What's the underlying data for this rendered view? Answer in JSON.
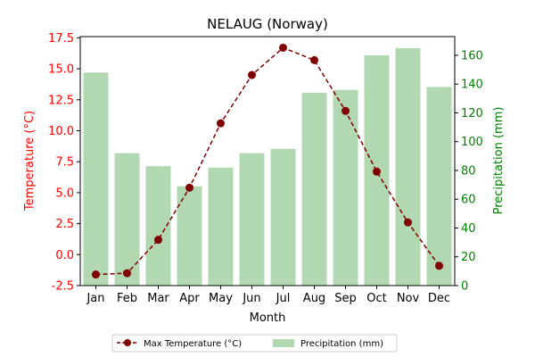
{
  "chart_data": {
    "type": "bar+line",
    "title": "NELAUG (Norway)",
    "xlabel": "Month",
    "categories": [
      "Jan",
      "Feb",
      "Mar",
      "Apr",
      "May",
      "Jun",
      "Jul",
      "Aug",
      "Sep",
      "Oct",
      "Nov",
      "Dec"
    ],
    "series": [
      {
        "name": "Max Temperature (°C)",
        "type": "line",
        "axis": "left",
        "values": [
          -1.6,
          -1.5,
          1.2,
          5.4,
          10.6,
          14.5,
          16.7,
          15.7,
          11.6,
          6.7,
          2.6,
          -0.9
        ],
        "color": "#800000"
      },
      {
        "name": "Precipitation (mm)",
        "type": "bar",
        "axis": "right",
        "values": [
          148,
          92,
          83,
          69,
          82,
          92,
          95,
          134,
          136,
          160,
          165,
          138
        ],
        "color": "#b2d8b2"
      }
    ],
    "y_left": {
      "label": "Temperature (°C)",
      "ylim": [
        -2.5,
        17.6
      ],
      "ticks": [
        "-2.5",
        "0.0",
        "2.5",
        "5.0",
        "7.5",
        "10.0",
        "12.5",
        "15.0",
        "17.5"
      ],
      "tick_values": [
        -2.5,
        0,
        2.5,
        5,
        7.5,
        10,
        12.5,
        15,
        17.5
      ],
      "color": "#ff0000"
    },
    "y_right": {
      "label": "Precipitation (mm)",
      "ylim": [
        0,
        173
      ],
      "ticks": [
        "0",
        "20",
        "40",
        "60",
        "80",
        "100",
        "120",
        "140",
        "160"
      ],
      "tick_values": [
        0,
        20,
        40,
        60,
        80,
        100,
        120,
        140,
        160
      ],
      "color": "#008000"
    },
    "legend": {
      "placement": "bottom-center",
      "entries": [
        "Max Temperature (°C)",
        "Precipitation (mm)"
      ]
    },
    "grid": false
  }
}
